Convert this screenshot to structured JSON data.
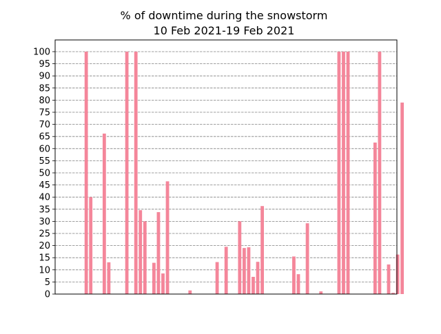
{
  "chart_data": {
    "type": "bar",
    "title": "% of downtime during the snowstorm",
    "subtitle": "10 Feb 2021-19 Feb 2021",
    "xlabel": "",
    "ylabel": "",
    "ylim": [
      0,
      100
    ],
    "yticks": [
      0,
      5,
      10,
      15,
      20,
      25,
      30,
      35,
      40,
      45,
      50,
      55,
      60,
      65,
      70,
      75,
      80,
      85,
      90,
      95,
      100
    ],
    "ytick_labels": [
      "0",
      "5",
      "10",
      "15",
      "20",
      "25",
      "30",
      "35",
      "40",
      "45",
      "50",
      "55",
      "60",
      "65",
      "70",
      "75",
      "80",
      "85",
      "90",
      "95",
      "100"
    ],
    "grid": "horizontal dashed",
    "bar_color": "#f4869a",
    "grid_color": "#808080",
    "values": [
      0,
      0,
      0,
      100,
      40,
      0,
      0,
      66.2,
      13.1,
      0,
      0,
      0,
      100,
      0,
      100,
      34.6,
      30,
      0,
      12.9,
      33.8,
      8.5,
      46.5,
      0,
      0,
      0,
      0,
      1.5,
      0,
      0,
      0,
      0,
      0,
      13.2,
      0,
      19.5,
      0,
      0,
      30,
      19,
      19.3,
      7.1,
      13.3,
      36.3,
      0,
      0,
      0,
      0,
      0,
      0,
      15.5,
      8.2,
      0,
      29.2,
      0,
      0,
      1.1,
      0,
      0,
      0,
      100,
      100,
      100,
      0,
      0,
      0,
      0,
      0,
      62.5,
      100,
      0,
      12.2,
      0.5,
      16.3,
      79
    ]
  }
}
